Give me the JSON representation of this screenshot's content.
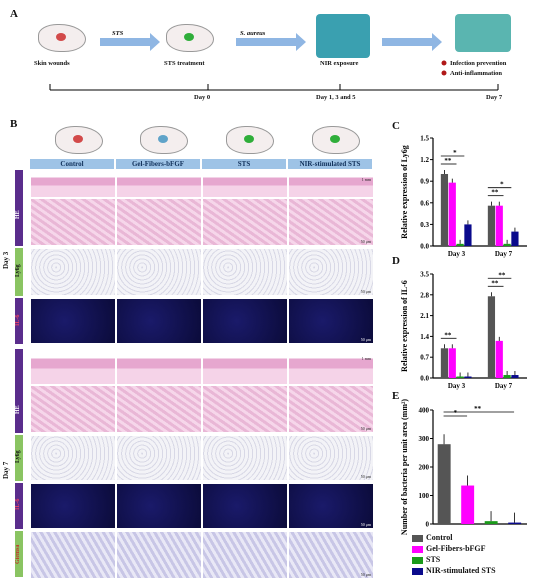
{
  "panels": {
    "A": "A",
    "B": "B",
    "C": "C",
    "D": "D",
    "E": "E"
  },
  "schema": {
    "steps": [
      "Skin wounds",
      "STS treatment",
      "NIR exposure",
      "Infection prevention",
      "Anti-inflammation"
    ],
    "arrow_labels": [
      "STS",
      "S. aureus"
    ],
    "timeline": [
      "Day 0",
      "Day 1, 3 and 5",
      "Day 7"
    ]
  },
  "histology": {
    "columns": [
      "Control",
      "Gel-Fibers-bFGF",
      "STS",
      "NIR-stimulated STS"
    ],
    "groups": [
      "Day 3",
      "Day 7"
    ],
    "stains_day3": [
      "HE",
      "Ly6g",
      "IL-6"
    ],
    "stains_day7": [
      "HE",
      "Ly6g",
      "IL-6",
      "Giemsa"
    ],
    "scale_labels": [
      "1 mm",
      "50 μm"
    ]
  },
  "colors": {
    "control": "#555555",
    "gel": "#ff00ff",
    "sts": "#1a9a1a",
    "nir": "#0a0a8c"
  },
  "legend": [
    "Control",
    "Gel-Fibers-bFGF",
    "STS",
    "NIR-stimulated STS"
  ],
  "chart_data": [
    {
      "type": "bar",
      "panel": "C",
      "ylabel": "Relative expression of Ly6g",
      "categories": [
        "Day 3",
        "Day 7"
      ],
      "ylim": [
        0,
        1.5
      ],
      "yticks": [
        "0.0",
        "0.3",
        "0.6",
        "0.9",
        "1.2",
        "1.5"
      ],
      "series": [
        {
          "name": "Control",
          "values": [
            1.0,
            0.56
          ]
        },
        {
          "name": "Gel-Fibers-bFGF",
          "values": [
            0.88,
            0.56
          ]
        },
        {
          "name": "STS",
          "values": [
            0.03,
            0.03
          ]
        },
        {
          "name": "NIR-stimulated STS",
          "values": [
            0.3,
            0.2
          ]
        }
      ],
      "annotations": [
        "**",
        "*",
        "**",
        "*"
      ]
    },
    {
      "type": "bar",
      "panel": "D",
      "ylabel": "Relative expression of IL-6",
      "categories": [
        "Day 3",
        "Day 7"
      ],
      "ylim": [
        0,
        3.5
      ],
      "yticks": [
        "0.0",
        "0.7",
        "1.4",
        "2.1",
        "2.8",
        "3.5"
      ],
      "series": [
        {
          "name": "Control",
          "values": [
            1.0,
            2.75
          ]
        },
        {
          "name": "Gel-Fibers-bFGF",
          "values": [
            1.0,
            1.25
          ]
        },
        {
          "name": "STS",
          "values": [
            0.05,
            0.1
          ]
        },
        {
          "name": "NIR-stimulated STS",
          "values": [
            0.05,
            0.1
          ]
        }
      ],
      "annotations": [
        "**",
        "**",
        "**"
      ]
    },
    {
      "type": "bar",
      "panel": "E",
      "ylabel": "Number of bacteria per unit area (mm²)",
      "categories": [
        "Control",
        "Gel-Fibers-bFGF",
        "STS",
        "NIR-stimulated STS"
      ],
      "ylim": [
        0,
        400
      ],
      "yticks": [
        "0",
        "100",
        "200",
        "300",
        "400"
      ],
      "values": [
        280,
        135,
        10,
        5
      ],
      "annotations": [
        "*",
        "**"
      ]
    }
  ]
}
